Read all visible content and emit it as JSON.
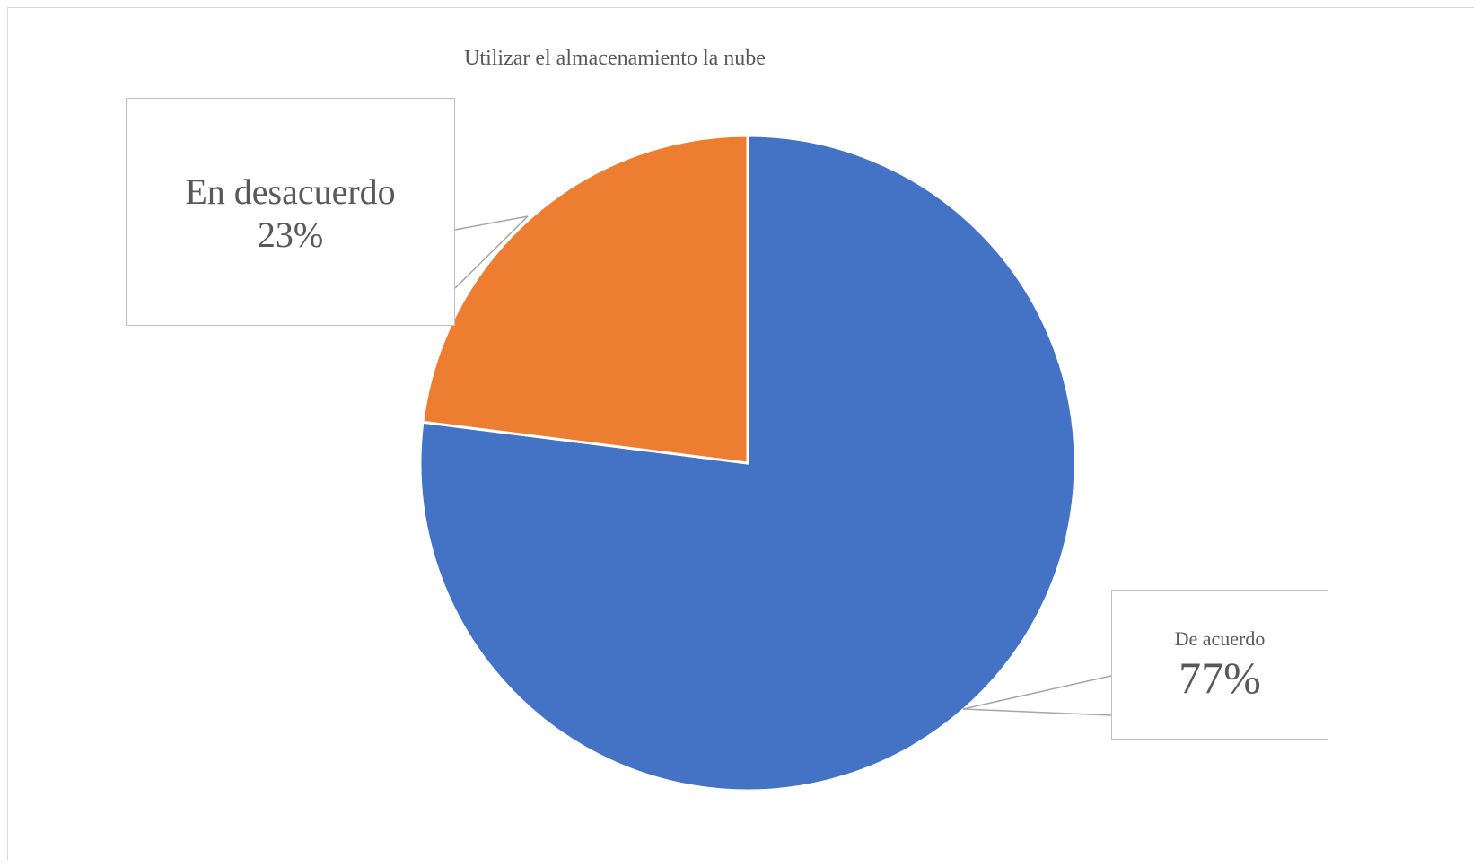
{
  "chart_data": {
    "type": "pie",
    "title": "Utilizar el almacenamiento la nube",
    "slices": [
      {
        "label": "De acuerdo",
        "value": 77,
        "value_label": "77%",
        "color": "#4472C4"
      },
      {
        "label": "En desacuerdo",
        "value": 23,
        "value_label": "23%",
        "color": "#ED7D31"
      }
    ],
    "data_labels": "callouts with leader lines",
    "legend": "none"
  }
}
